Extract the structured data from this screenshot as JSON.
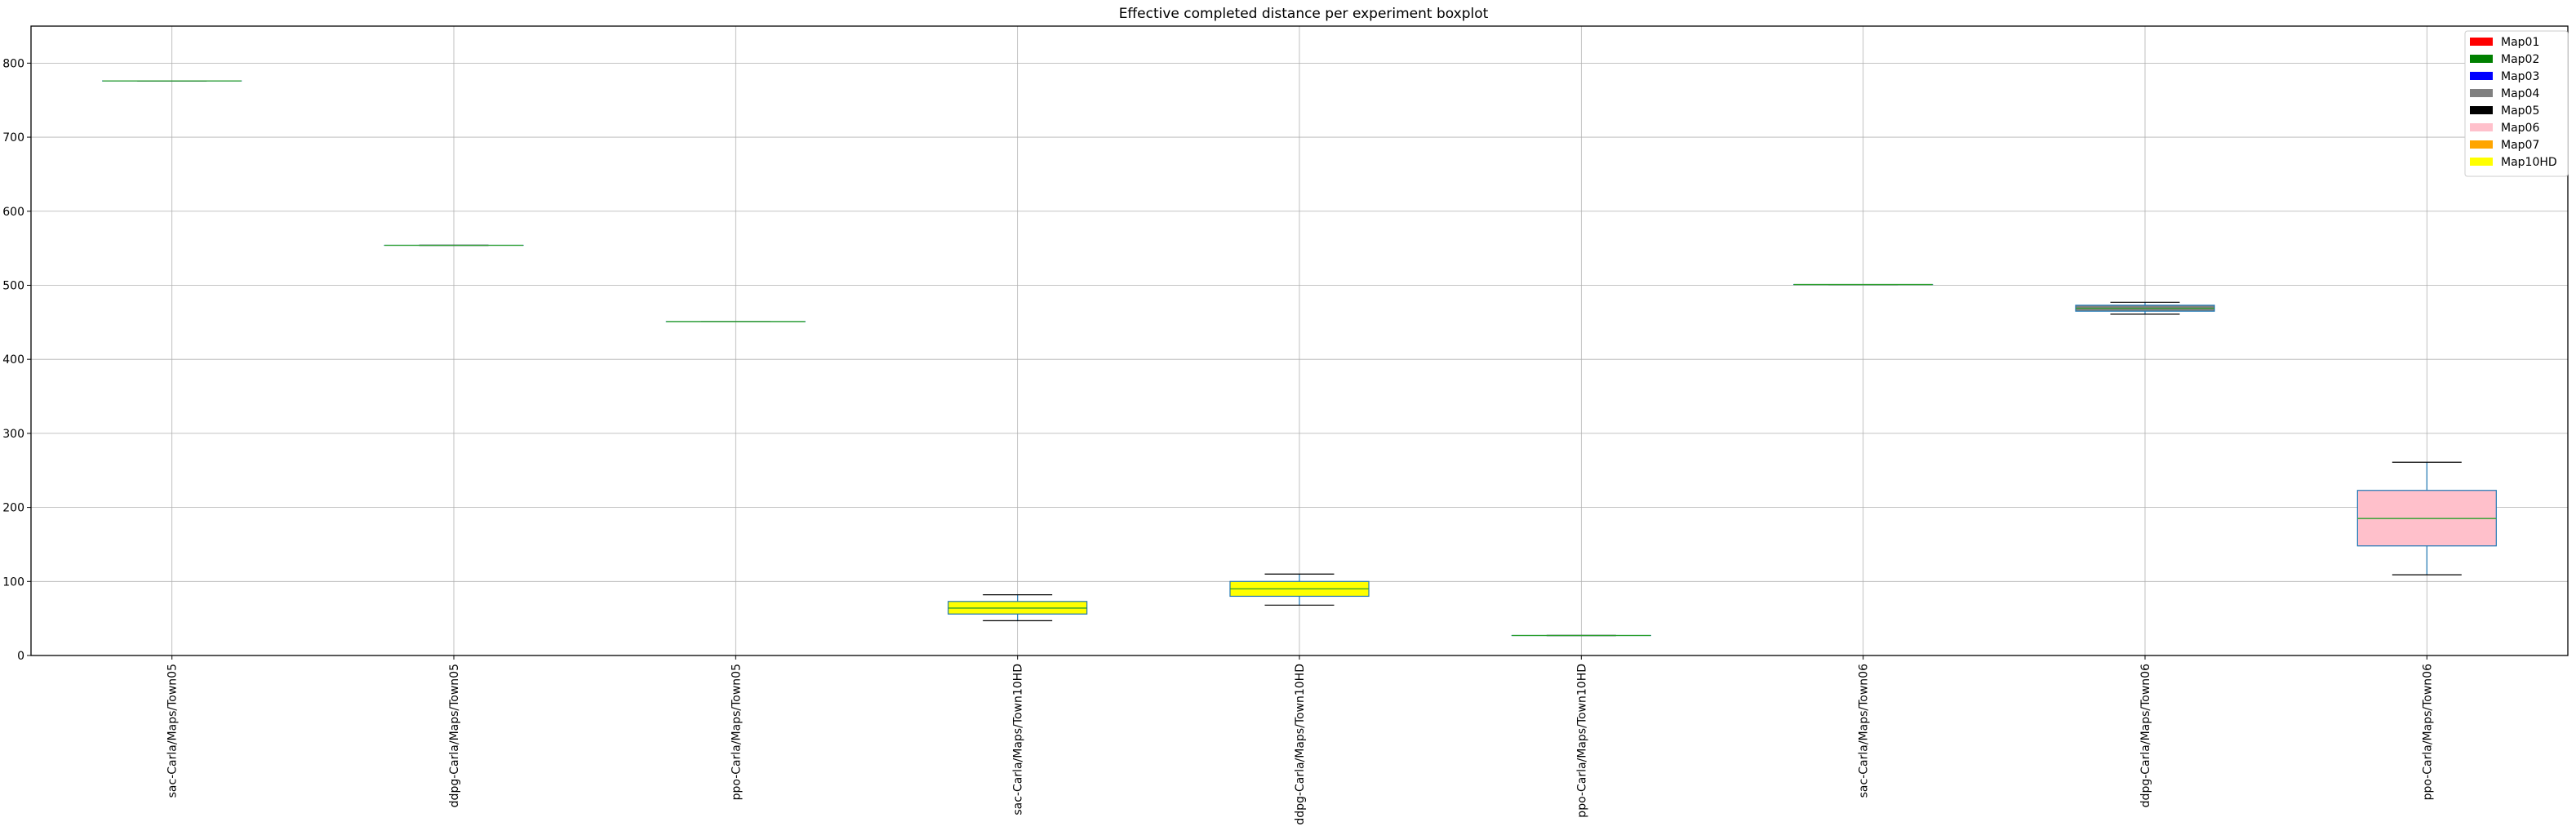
{
  "chart_data": {
    "type": "boxplot",
    "title": "Effective completed distance per experiment boxplot",
    "xlabel": "",
    "ylabel": "",
    "ylim": [
      0,
      850
    ],
    "yticks": [
      0,
      100,
      200,
      300,
      400,
      500,
      600,
      700,
      800
    ],
    "grid": true,
    "legend_position": "top-right",
    "legend": [
      {
        "label": "Map01",
        "color": "#ff0000"
      },
      {
        "label": "Map02",
        "color": "#008000"
      },
      {
        "label": "Map03",
        "color": "#0000ff"
      },
      {
        "label": "Map04",
        "color": "#808080"
      },
      {
        "label": "Map05",
        "color": "#000000"
      },
      {
        "label": "Map06",
        "color": "#ffc0cb"
      },
      {
        "label": "Map07",
        "color": "#ffa500"
      },
      {
        "label": "Map10HD",
        "color": "#ffff00"
      }
    ],
    "categories": [
      "sac-Carla/Maps/Town05",
      "ddpg-Carla/Maps/Town05",
      "ppo-Carla/Maps/Town05",
      "sac-Carla/Maps/Town10HD",
      "ddpg-Carla/Maps/Town10HD",
      "ppo-Carla/Maps/Town10HD",
      "sac-Carla/Maps/Town06",
      "ddpg-Carla/Maps/Town06",
      "ppo-Carla/Maps/Town06"
    ],
    "boxes": [
      {
        "whislo": 776,
        "q1": 776,
        "med": 776,
        "q3": 776,
        "whishi": 776,
        "color": "#000000"
      },
      {
        "whislo": 554,
        "q1": 554,
        "med": 554,
        "q3": 554,
        "whishi": 554,
        "color": "#000000"
      },
      {
        "whislo": 451,
        "q1": 451,
        "med": 451,
        "q3": 451,
        "whishi": 451,
        "color": "#000000"
      },
      {
        "whislo": 47,
        "q1": 56,
        "med": 64,
        "q3": 73,
        "whishi": 82,
        "color": "#ffff00"
      },
      {
        "whislo": 68,
        "q1": 80,
        "med": 90,
        "q3": 100,
        "whishi": 110,
        "color": "#ffff00"
      },
      {
        "whislo": 27,
        "q1": 27,
        "med": 27,
        "q3": 27,
        "whishi": 27,
        "color": "#000000"
      },
      {
        "whislo": 501,
        "q1": 501,
        "med": 501,
        "q3": 501,
        "whishi": 501,
        "color": "#000000"
      },
      {
        "whislo": 461,
        "q1": 465,
        "med": 469,
        "q3": 473,
        "whishi": 477,
        "color": "#808080"
      },
      {
        "whislo": 109,
        "q1": 148,
        "med": 185,
        "q3": 223,
        "whishi": 261,
        "color": "#ffc0cb"
      }
    ]
  }
}
